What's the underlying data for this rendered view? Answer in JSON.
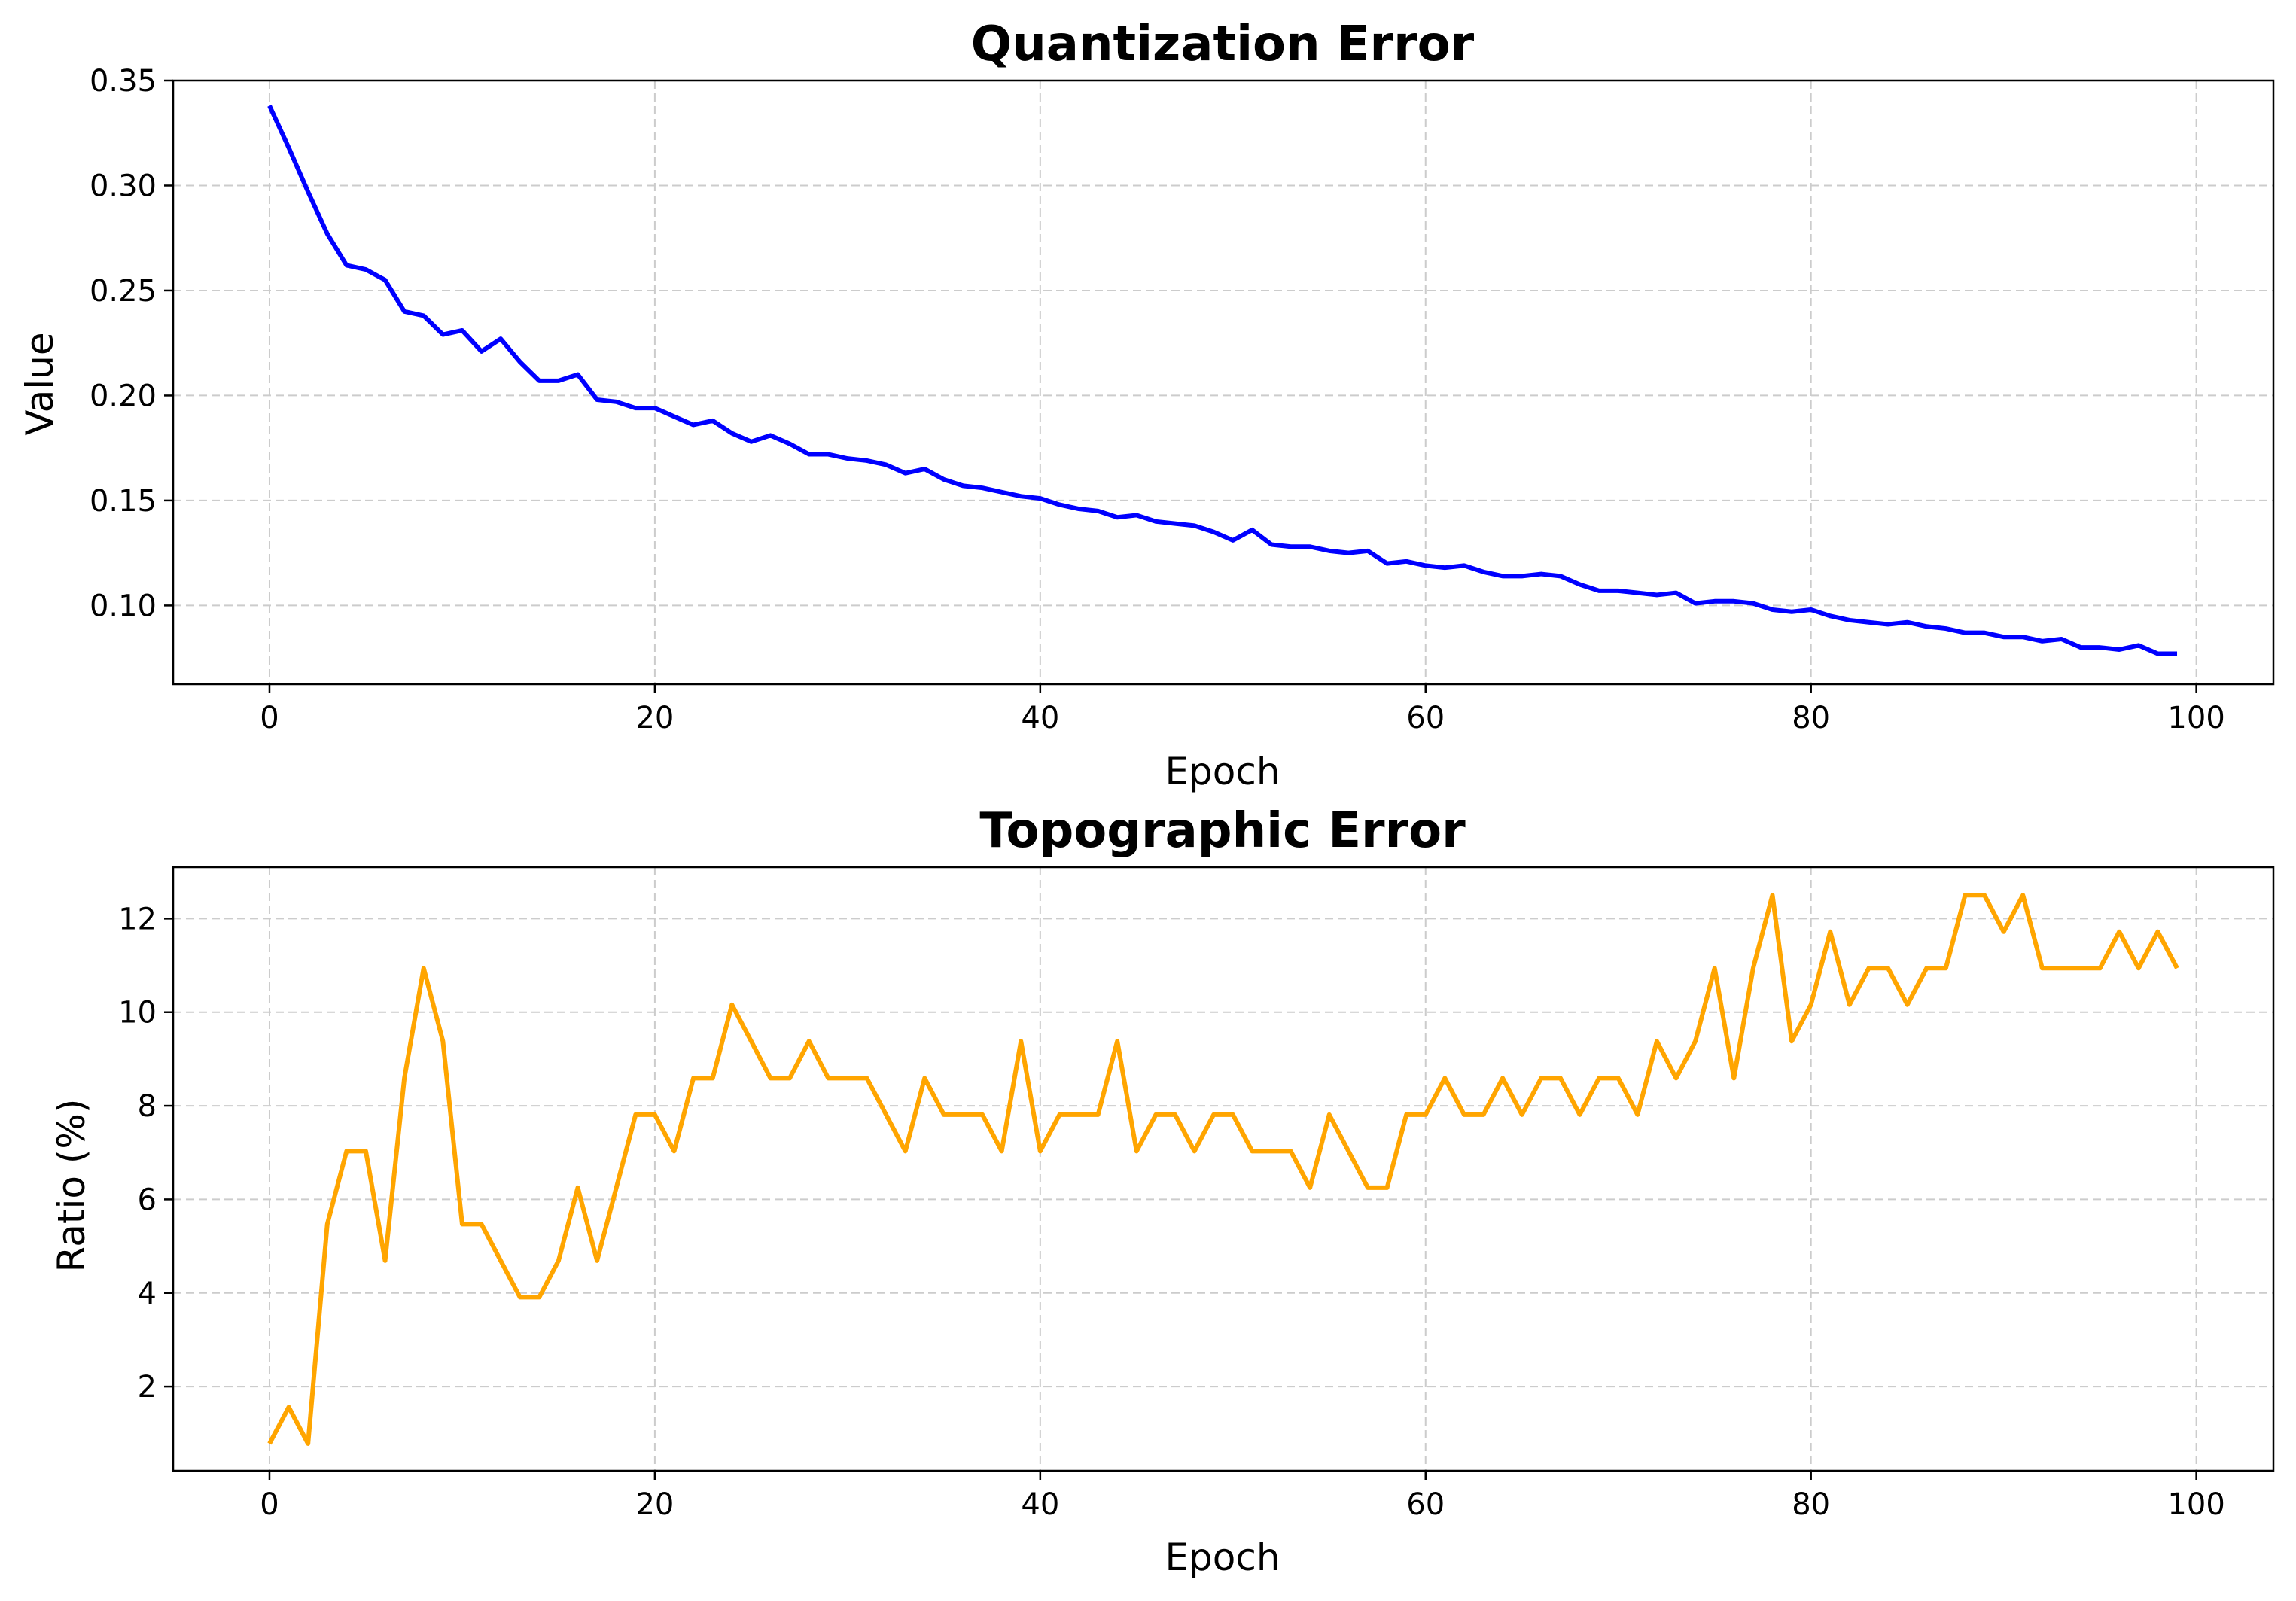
{
  "chart_data": [
    {
      "type": "line",
      "title": "Quantization Error",
      "xlabel": "Epoch",
      "ylabel": "Value",
      "xlim": [
        -5,
        104
      ],
      "ylim": [
        0.0625,
        0.35
      ],
      "xticks": [
        0,
        20,
        40,
        60,
        80,
        100
      ],
      "yticks": [
        0.1,
        0.15,
        0.2,
        0.25,
        0.3,
        0.35
      ],
      "ytick_decimals": 2,
      "grid": true,
      "color": "#0000ff",
      "series": [
        {
          "x": [
            0,
            1,
            2,
            3,
            4,
            5,
            6,
            7,
            8,
            9,
            10,
            11,
            12,
            13,
            14,
            15,
            16,
            17,
            18,
            19,
            20,
            21,
            22,
            23,
            24,
            25,
            26,
            27,
            28,
            29,
            30,
            31,
            32,
            33,
            34,
            35,
            36,
            37,
            38,
            39,
            40,
            41,
            42,
            43,
            44,
            45,
            46,
            47,
            48,
            49,
            50,
            51,
            52,
            53,
            54,
            55,
            56,
            57,
            58,
            59,
            60,
            61,
            62,
            63,
            64,
            65,
            66,
            67,
            68,
            69,
            70,
            71,
            72,
            73,
            74,
            75,
            76,
            77,
            78,
            79,
            80,
            81,
            82,
            83,
            84,
            85,
            86,
            87,
            88,
            89,
            90,
            91,
            92,
            93,
            94,
            95,
            96,
            97,
            98,
            99
          ],
          "values": [
            0.338,
            0.318,
            0.297,
            0.277,
            0.262,
            0.26,
            0.255,
            0.24,
            0.238,
            0.229,
            0.231,
            0.221,
            0.227,
            0.216,
            0.207,
            0.207,
            0.21,
            0.198,
            0.197,
            0.194,
            0.194,
            0.19,
            0.186,
            0.188,
            0.182,
            0.178,
            0.181,
            0.177,
            0.172,
            0.172,
            0.17,
            0.169,
            0.167,
            0.163,
            0.165,
            0.16,
            0.157,
            0.156,
            0.154,
            0.152,
            0.151,
            0.148,
            0.146,
            0.145,
            0.142,
            0.143,
            0.14,
            0.139,
            0.138,
            0.135,
            0.131,
            0.136,
            0.129,
            0.128,
            0.128,
            0.126,
            0.125,
            0.126,
            0.12,
            0.121,
            0.119,
            0.118,
            0.119,
            0.116,
            0.114,
            0.114,
            0.115,
            0.114,
            0.11,
            0.107,
            0.107,
            0.106,
            0.105,
            0.106,
            0.101,
            0.102,
            0.102,
            0.101,
            0.098,
            0.097,
            0.098,
            0.095,
            0.093,
            0.092,
            0.091,
            0.092,
            0.09,
            0.089,
            0.087,
            0.087,
            0.085,
            0.085,
            0.083,
            0.084,
            0.08,
            0.08,
            0.079,
            0.081,
            0.077,
            0.077
          ]
        }
      ]
    },
    {
      "type": "line",
      "title": "Topographic Error",
      "xlabel": "Epoch",
      "ylabel": "Ratio (%)",
      "xlim": [
        -5,
        104
      ],
      "ylim": [
        0.2,
        13.1
      ],
      "xticks": [
        0,
        20,
        40,
        60,
        80,
        100
      ],
      "yticks": [
        2,
        4,
        6,
        8,
        10,
        12
      ],
      "ytick_decimals": 0,
      "grid": true,
      "color": "#ffa500",
      "series": [
        {
          "x": [
            0,
            1,
            2,
            3,
            4,
            5,
            6,
            7,
            8,
            9,
            10,
            11,
            12,
            13,
            14,
            15,
            16,
            17,
            18,
            19,
            20,
            21,
            22,
            23,
            24,
            25,
            26,
            27,
            28,
            29,
            30,
            31,
            32,
            33,
            34,
            35,
            36,
            37,
            38,
            39,
            40,
            41,
            42,
            43,
            44,
            45,
            46,
            47,
            48,
            49,
            50,
            51,
            52,
            53,
            54,
            55,
            56,
            57,
            58,
            59,
            60,
            61,
            62,
            63,
            64,
            65,
            66,
            67,
            68,
            69,
            70,
            71,
            72,
            73,
            74,
            75,
            76,
            77,
            78,
            79,
            80,
            81,
            82,
            83,
            84,
            85,
            86,
            87,
            88,
            89,
            90,
            91,
            92,
            93,
            94,
            95,
            96,
            97,
            98,
            99
          ],
          "values": [
            0.78,
            1.56,
            0.78,
            5.47,
            7.03,
            7.03,
            4.69,
            8.59,
            10.94,
            9.38,
            5.47,
            5.47,
            4.69,
            3.91,
            3.91,
            4.69,
            6.25,
            4.69,
            6.25,
            7.81,
            7.81,
            7.03,
            8.59,
            8.59,
            10.16,
            9.38,
            8.59,
            8.59,
            9.38,
            8.59,
            8.59,
            8.59,
            7.81,
            7.03,
            8.59,
            7.81,
            7.81,
            7.81,
            7.03,
            9.38,
            7.03,
            7.81,
            7.81,
            7.81,
            9.38,
            7.03,
            7.81,
            7.81,
            7.03,
            7.81,
            7.81,
            7.03,
            7.03,
            7.03,
            6.25,
            7.81,
            7.03,
            6.25,
            6.25,
            7.81,
            7.81,
            8.59,
            7.81,
            7.81,
            8.59,
            7.81,
            8.59,
            8.59,
            7.81,
            8.59,
            8.59,
            7.81,
            9.38,
            8.59,
            9.38,
            10.94,
            8.59,
            10.94,
            12.5,
            9.38,
            10.16,
            11.72,
            10.16,
            10.94,
            10.94,
            10.16,
            10.94,
            10.94,
            12.5,
            12.5,
            11.72,
            12.5,
            10.94,
            10.94,
            10.94,
            10.94,
            11.72,
            10.94,
            11.72,
            10.94
          ]
        }
      ]
    }
  ]
}
